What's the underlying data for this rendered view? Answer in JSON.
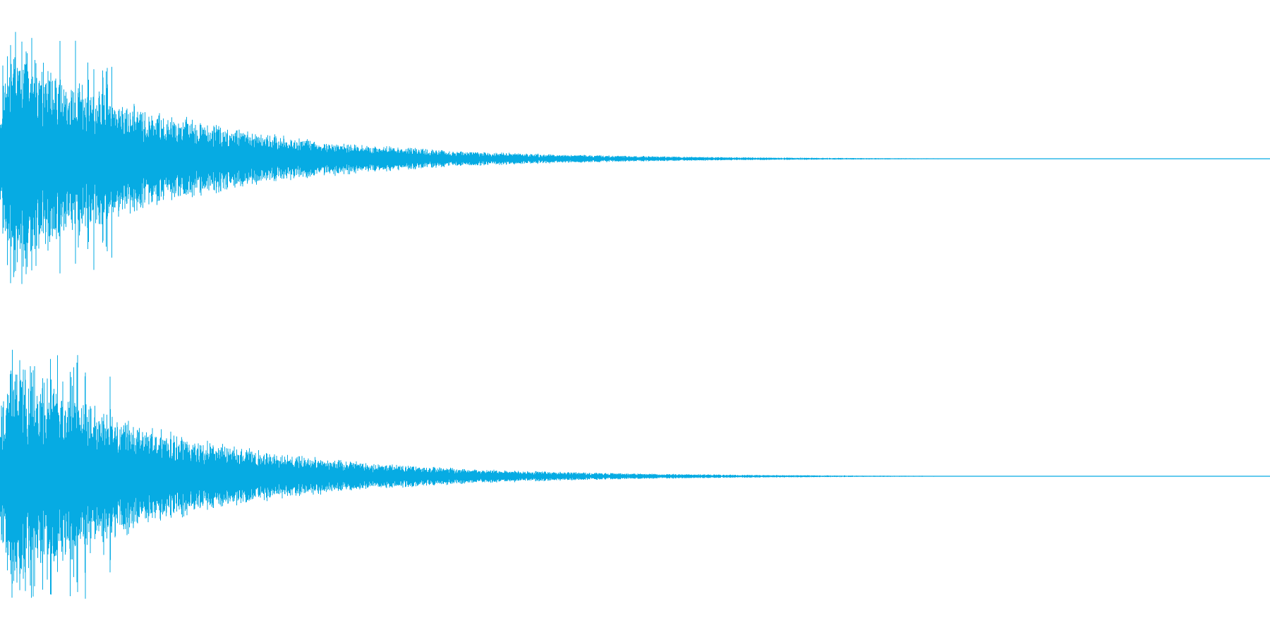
{
  "waveform": {
    "color": "#06abe3",
    "background": "#ffffff",
    "channels": [
      {
        "id": "channel-1",
        "seed": 11
      },
      {
        "id": "channel-2",
        "seed": 47
      }
    ]
  }
}
